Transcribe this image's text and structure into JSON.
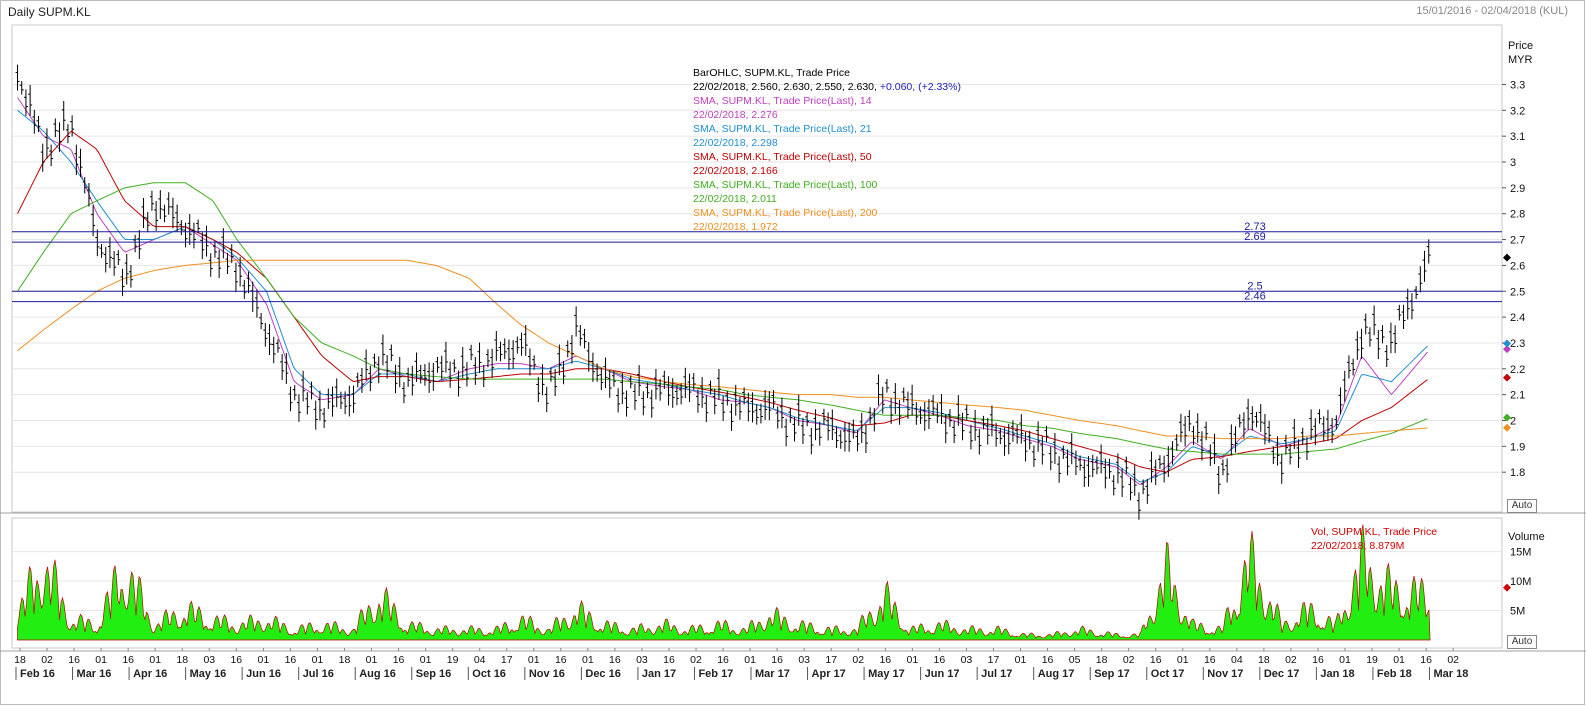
{
  "header": {
    "title": "Daily SUPM.KL",
    "date_range": "15/01/2016 - 02/04/2018 (KUL)"
  },
  "price_axis": {
    "label1": "Price",
    "label2": "MYR",
    "ticks": [
      "3.3",
      "3.2",
      "3.1",
      "3",
      "2.9",
      "2.8",
      "2.7",
      "2.6",
      "2.5",
      "2.4",
      "2.3",
      "2.2",
      "2.1",
      "2",
      "1.9",
      "1.8"
    ],
    "auto": "Auto"
  },
  "volume_axis": {
    "label": "Volume",
    "ticks": [
      "15M",
      "10M",
      "5M"
    ],
    "auto": "Auto"
  },
  "legend": {
    "ohlc_name": "BarOHLC, SUPM.KL, Trade Price",
    "ohlc_values": "22/02/2018, 2.560, 2.630, 2.550, 2.630,",
    "ohlc_change": "+0.060, (+2.33%)",
    "sma": [
      {
        "name": "SMA, SUPM.KL, Trade Price(Last),  14",
        "value": "22/02/2018, 2.276",
        "color": "#c040c0"
      },
      {
        "name": "SMA, SUPM.KL, Trade Price(Last),  21",
        "value": "22/02/2018, 2.298",
        "color": "#2090d0"
      },
      {
        "name": "SMA, SUPM.KL, Trade Price(Last),  50",
        "value": "22/02/2018, 2.166",
        "color": "#c00000"
      },
      {
        "name": "SMA, SUPM.KL, Trade Price(Last),  100",
        "value": "22/02/2018, 2.011",
        "color": "#40b020"
      },
      {
        "name": "SMA, SUPM.KL, Trade Price(Last),  200",
        "value": "22/02/2018, 1.972",
        "color": "#f09020"
      }
    ]
  },
  "vol_legend": {
    "name": "Vol, SUPM.KL, Trade Price",
    "value": "22/02/2018, 8.879M"
  },
  "hlines": [
    {
      "label": "2.73",
      "value": 2.73
    },
    {
      "label": "2.69",
      "value": 2.69
    },
    {
      "label": "2.5",
      "value": 2.5
    },
    {
      "label": "2.46",
      "value": 2.46
    }
  ],
  "x_axis": {
    "days": [
      "18",
      "02",
      "16",
      "01",
      "16",
      "01",
      "18",
      "03",
      "16",
      "01",
      "16",
      "01",
      "18",
      "01",
      "16",
      "01",
      "19",
      "04",
      "17",
      "01",
      "16",
      "01",
      "16",
      "03",
      "16",
      "02",
      "16",
      "01",
      "16",
      "03",
      "17",
      "02",
      "16",
      "01",
      "16",
      "03",
      "17",
      "01",
      "16",
      "05",
      "18",
      "02",
      "16",
      "01",
      "16",
      "04",
      "18",
      "02",
      "16",
      "01",
      "19",
      "01",
      "16",
      "02"
    ],
    "months": [
      "Feb 16",
      "Mar 16",
      "Apr 16",
      "May 16",
      "Jun 16",
      "Jul 16",
      "Aug 16",
      "Sep 16",
      "Oct 16",
      "Nov 16",
      "Dec 16",
      "Jan 17",
      "Feb 17",
      "Mar 17",
      "Apr 17",
      "May 17",
      "Jun 17",
      "Jul 17",
      "Aug 17",
      "Sep 17",
      "Oct 17",
      "Nov 17",
      "Dec 17",
      "Jan 18",
      "Feb 18",
      "Mar 18"
    ]
  },
  "chart_data": {
    "type": "bar",
    "title": "Daily SUPM.KL",
    "date_range": [
      "15/01/2016",
      "02/04/2018"
    ],
    "ylabel": "Price MYR",
    "ylim": [
      1.7,
      3.4
    ],
    "close_series": {
      "name": "BarOHLC, SUPM.KL, Trade Price",
      "dates": [
        "2016-01-18",
        "2016-02-01",
        "2016-02-16",
        "2016-03-01",
        "2016-03-16",
        "2016-04-01",
        "2016-04-18",
        "2016-05-03",
        "2016-05-16",
        "2016-06-01",
        "2016-06-16",
        "2016-07-01",
        "2016-07-18",
        "2016-08-01",
        "2016-08-16",
        "2016-09-01",
        "2016-09-19",
        "2016-10-04",
        "2016-10-17",
        "2016-11-01",
        "2016-11-16",
        "2016-12-01",
        "2016-12-16",
        "2017-01-03",
        "2017-01-16",
        "2017-02-02",
        "2017-02-16",
        "2017-03-01",
        "2017-03-16",
        "2017-04-03",
        "2017-04-17",
        "2017-05-02",
        "2017-05-16",
        "2017-06-01",
        "2017-06-16",
        "2017-07-03",
        "2017-07-17",
        "2017-08-01",
        "2017-08-16",
        "2017-09-05",
        "2017-09-18",
        "2017-10-02",
        "2017-10-16",
        "2017-11-01",
        "2017-11-16",
        "2017-12-04",
        "2017-12-18",
        "2018-01-02",
        "2018-01-16",
        "2018-02-01",
        "2018-02-22"
      ],
      "values": [
        3.35,
        3.05,
        3.15,
        2.7,
        2.55,
        2.85,
        2.75,
        2.65,
        2.6,
        2.35,
        2.1,
        2.05,
        2.1,
        2.25,
        2.15,
        2.2,
        2.2,
        2.25,
        2.3,
        2.1,
        2.35,
        2.15,
        2.1,
        2.12,
        2.12,
        2.08,
        2.05,
        2.05,
        1.98,
        1.97,
        1.92,
        2.1,
        2.05,
        2.02,
        1.98,
        1.95,
        1.93,
        1.88,
        1.83,
        1.8,
        1.72,
        1.85,
        2.0,
        1.8,
        2.05,
        1.85,
        1.95,
        2.0,
        2.35,
        2.3,
        2.63
      ]
    },
    "sma_series": [
      {
        "name": "SMA 14",
        "last": 2.276,
        "values": [
          3.25,
          3.1,
          3.05,
          2.8,
          2.65,
          2.7,
          2.75,
          2.68,
          2.62,
          2.45,
          2.15,
          2.08,
          2.1,
          2.2,
          2.17,
          2.15,
          2.2,
          2.22,
          2.22,
          2.2,
          2.25,
          2.2,
          2.15,
          2.13,
          2.12,
          2.08,
          2.07,
          2.05,
          2.0,
          1.98,
          1.95,
          2.08,
          2.05,
          2.02,
          1.98,
          1.96,
          1.93,
          1.9,
          1.85,
          1.82,
          1.75,
          1.82,
          1.92,
          1.85,
          1.97,
          1.9,
          1.93,
          1.98,
          2.25,
          2.1,
          2.276
        ]
      },
      {
        "name": "SMA 21",
        "last": 2.298,
        "values": [
          3.2,
          3.12,
          3.0,
          2.85,
          2.7,
          2.7,
          2.75,
          2.7,
          2.63,
          2.5,
          2.2,
          2.1,
          2.1,
          2.18,
          2.18,
          2.15,
          2.18,
          2.2,
          2.2,
          2.2,
          2.23,
          2.2,
          2.16,
          2.14,
          2.12,
          2.1,
          2.07,
          2.05,
          2.01,
          1.98,
          1.96,
          2.05,
          2.05,
          2.03,
          2.0,
          1.97,
          1.94,
          1.91,
          1.86,
          1.83,
          1.76,
          1.8,
          1.9,
          1.86,
          1.94,
          1.91,
          1.93,
          1.96,
          2.18,
          2.15,
          2.298
        ]
      },
      {
        "name": "SMA 50",
        "last": 2.166,
        "values": [
          2.8,
          3.0,
          3.12,
          3.05,
          2.85,
          2.75,
          2.75,
          2.7,
          2.65,
          2.55,
          2.4,
          2.25,
          2.15,
          2.17,
          2.17,
          2.15,
          2.16,
          2.17,
          2.18,
          2.18,
          2.2,
          2.2,
          2.18,
          2.15,
          2.13,
          2.11,
          2.09,
          2.07,
          2.04,
          2.01,
          1.98,
          1.99,
          2.02,
          2.02,
          2.0,
          1.98,
          1.96,
          1.93,
          1.9,
          1.86,
          1.82,
          1.8,
          1.85,
          1.86,
          1.88,
          1.9,
          1.91,
          1.93,
          2.0,
          2.05,
          2.166
        ]
      },
      {
        "name": "SMA 100",
        "last": 2.011,
        "values": [
          2.5,
          2.65,
          2.8,
          2.85,
          2.9,
          2.92,
          2.92,
          2.85,
          2.7,
          2.55,
          2.4,
          2.3,
          2.25,
          2.2,
          2.18,
          2.17,
          2.16,
          2.16,
          2.16,
          2.16,
          2.16,
          2.16,
          2.15,
          2.14,
          2.13,
          2.12,
          2.1,
          2.09,
          2.08,
          2.06,
          2.04,
          2.02,
          2.02,
          2.02,
          2.01,
          2.0,
          1.98,
          1.97,
          1.95,
          1.93,
          1.91,
          1.89,
          1.88,
          1.87,
          1.87,
          1.87,
          1.88,
          1.89,
          1.92,
          1.95,
          2.011
        ]
      },
      {
        "name": "SMA 200",
        "last": 1.972,
        "values": [
          2.27,
          2.35,
          2.43,
          2.5,
          2.55,
          2.58,
          2.6,
          2.61,
          2.62,
          2.62,
          2.62,
          2.62,
          2.62,
          2.62,
          2.62,
          2.6,
          2.55,
          2.45,
          2.37,
          2.3,
          2.25,
          2.2,
          2.17,
          2.15,
          2.14,
          2.13,
          2.12,
          2.11,
          2.1,
          2.1,
          2.09,
          2.09,
          2.08,
          2.07,
          2.06,
          2.05,
          2.04,
          2.02,
          2.0,
          1.98,
          1.96,
          1.94,
          1.94,
          1.93,
          1.93,
          1.93,
          1.94,
          1.94,
          1.95,
          1.96,
          1.972
        ]
      }
    ],
    "volume_series": {
      "name": "Vol, SUPM.KL, Trade Price",
      "last": "8.879M",
      "ylim": [
        0,
        19
      ],
      "values": [
        5,
        16,
        4,
        3,
        15,
        3,
        6,
        4,
        3,
        4,
        2,
        3,
        2,
        9,
        3,
        2,
        2,
        2,
        4,
        2,
        6,
        3,
        2,
        3,
        2,
        3,
        2,
        5,
        3,
        2,
        2,
        9,
        2,
        3,
        2,
        2,
        1,
        1,
        2,
        1,
        1,
        14,
        3,
        2,
        16,
        3,
        6,
        3,
        16,
        10,
        8.879
      ]
    },
    "reference_lines": [
      2.73,
      2.69,
      2.5,
      2.46
    ]
  }
}
